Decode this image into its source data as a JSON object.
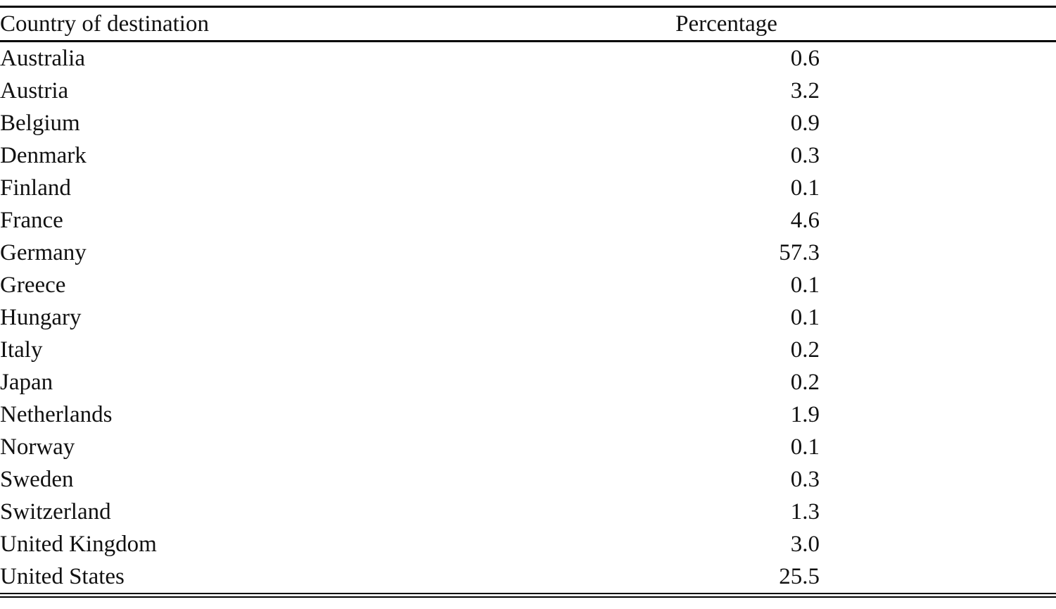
{
  "table": {
    "columns": [
      "Country of destination",
      "Percentage"
    ],
    "rows": [
      {
        "country": "Australia",
        "percentage": "0.6"
      },
      {
        "country": "Austria",
        "percentage": "3.2"
      },
      {
        "country": "Belgium",
        "percentage": "0.9"
      },
      {
        "country": "Denmark",
        "percentage": "0.3"
      },
      {
        "country": "Finland",
        "percentage": "0.1"
      },
      {
        "country": "France",
        "percentage": "4.6"
      },
      {
        "country": "Germany",
        "percentage": "57.3"
      },
      {
        "country": "Greece",
        "percentage": "0.1"
      },
      {
        "country": "Hungary",
        "percentage": "0.1"
      },
      {
        "country": "Italy",
        "percentage": "0.2"
      },
      {
        "country": "Japan",
        "percentage": "0.2"
      },
      {
        "country": "Netherlands",
        "percentage": "1.9"
      },
      {
        "country": "Norway",
        "percentage": "0.1"
      },
      {
        "country": "Sweden",
        "percentage": "0.3"
      },
      {
        "country": "Switzerland",
        "percentage": "1.3"
      },
      {
        "country": "United Kingdom",
        "percentage": "3.0"
      },
      {
        "country": "United States",
        "percentage": "25.5"
      }
    ]
  },
  "chart_data": {
    "type": "table",
    "title": "",
    "columns": [
      "Country of destination",
      "Percentage"
    ],
    "categories": [
      "Australia",
      "Austria",
      "Belgium",
      "Denmark",
      "Finland",
      "France",
      "Germany",
      "Greece",
      "Hungary",
      "Italy",
      "Japan",
      "Netherlands",
      "Norway",
      "Sweden",
      "Switzerland",
      "United Kingdom",
      "United States"
    ],
    "values": [
      0.6,
      3.2,
      0.9,
      0.3,
      0.1,
      4.6,
      57.3,
      0.1,
      0.1,
      0.2,
      0.2,
      1.9,
      0.1,
      0.3,
      1.3,
      3.0,
      25.5
    ]
  }
}
